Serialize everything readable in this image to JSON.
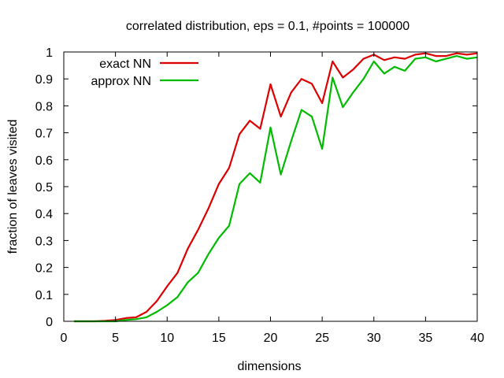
{
  "chart_data": {
    "type": "line",
    "title": "correlated distribution, eps = 0.1, #points = 100000",
    "xlabel": "dimensions",
    "ylabel": "fraction of leaves visited",
    "xlim": [
      0,
      40
    ],
    "ylim": [
      0,
      1
    ],
    "xticks": [
      0,
      5,
      10,
      15,
      20,
      25,
      30,
      35,
      40
    ],
    "yticks": [
      0,
      0.1,
      0.2,
      0.3,
      0.4,
      0.5,
      0.6,
      0.7,
      0.8,
      0.9,
      1
    ],
    "xtick_labels": [
      "0",
      "5",
      "10",
      "15",
      "20",
      "25",
      "30",
      "35",
      "40"
    ],
    "ytick_labels": [
      "0",
      "0.1",
      "0.2",
      "0.3",
      "0.4",
      "0.5",
      "0.6",
      "0.7",
      "0.8",
      "0.9",
      "1"
    ],
    "legend_position": "top-left",
    "grid": false,
    "x": [
      1,
      2,
      3,
      4,
      5,
      6,
      7,
      8,
      9,
      10,
      11,
      12,
      13,
      14,
      15,
      16,
      17,
      18,
      19,
      20,
      21,
      22,
      23,
      24,
      25,
      26,
      27,
      28,
      29,
      30,
      31,
      32,
      33,
      34,
      35,
      36,
      37,
      38,
      39,
      40
    ],
    "series": [
      {
        "name": "exact NN",
        "color": "#dd0000",
        "values": [
          0,
          0,
          0,
          0.002,
          0.005,
          0.012,
          0.015,
          0.035,
          0.075,
          0.13,
          0.18,
          0.27,
          0.34,
          0.42,
          0.51,
          0.57,
          0.695,
          0.745,
          0.715,
          0.88,
          0.76,
          0.85,
          0.9,
          0.882,
          0.81,
          0.965,
          0.905,
          0.935,
          0.975,
          0.99,
          0.97,
          0.98,
          0.975,
          0.99,
          0.995,
          0.985,
          0.985,
          0.995,
          0.99,
          0.995
        ]
      },
      {
        "name": "approx NN",
        "color": "#00bb00",
        "values": [
          0,
          0,
          0,
          0,
          0,
          0.005,
          0.008,
          0.015,
          0.035,
          0.06,
          0.09,
          0.145,
          0.18,
          0.25,
          0.31,
          0.355,
          0.51,
          0.55,
          0.515,
          0.72,
          0.545,
          0.67,
          0.785,
          0.76,
          0.64,
          0.905,
          0.795,
          0.85,
          0.9,
          0.965,
          0.92,
          0.945,
          0.93,
          0.975,
          0.98,
          0.965,
          0.975,
          0.985,
          0.975,
          0.98
        ]
      }
    ]
  }
}
